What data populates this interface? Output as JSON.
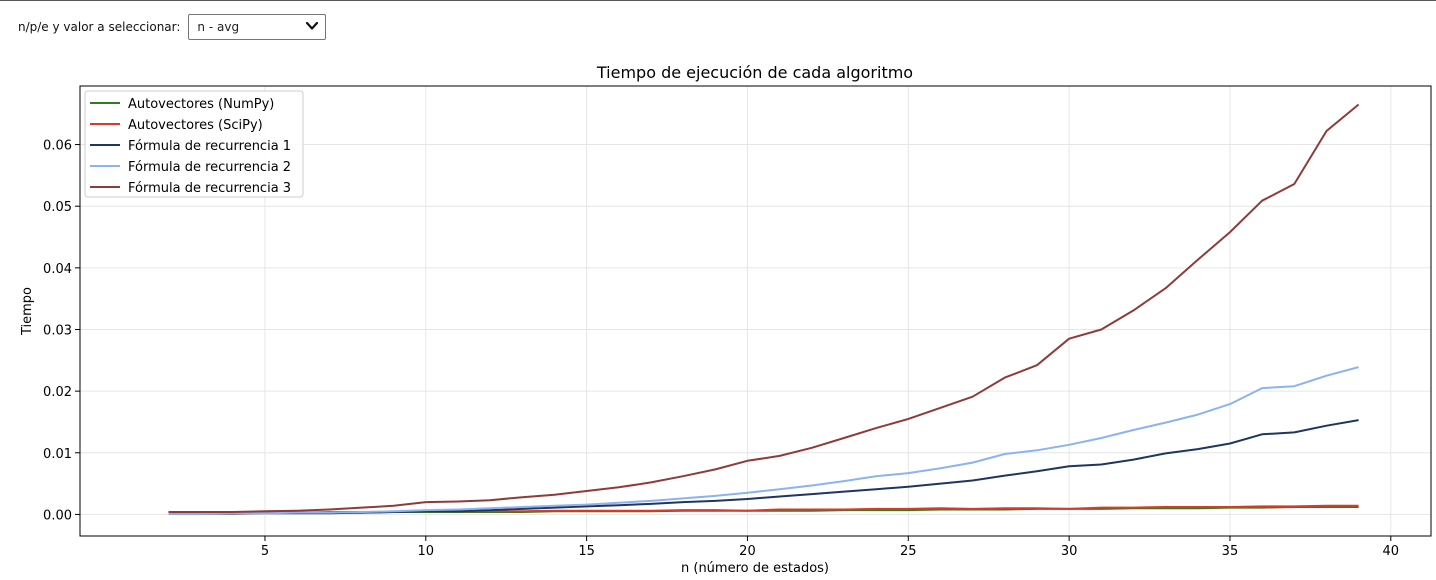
{
  "controls": {
    "label": "n/p/e y valor a seleccionar:",
    "selected": "n - avg"
  },
  "chart_data": {
    "type": "line",
    "title": "Tiempo de ejecución de cada algoritmo",
    "xlabel": "n (número de estados)",
    "ylabel": "Tiempo",
    "xlim": [
      -0.75,
      41.25
    ],
    "ylim": [
      -0.0035,
      0.0695
    ],
    "xticks": [
      5,
      10,
      15,
      20,
      25,
      30,
      35,
      40
    ],
    "yticks": [
      0.0,
      0.01,
      0.02,
      0.03,
      0.04,
      0.05,
      0.06
    ],
    "ytick_labels": [
      "0.00",
      "0.01",
      "0.02",
      "0.03",
      "0.04",
      "0.05",
      "0.06"
    ],
    "grid": true,
    "legend_position": "top-left",
    "x": [
      2,
      3,
      4,
      5,
      6,
      7,
      8,
      9,
      10,
      11,
      12,
      13,
      14,
      15,
      16,
      17,
      18,
      19,
      20,
      21,
      22,
      23,
      24,
      25,
      26,
      27,
      28,
      29,
      30,
      31,
      32,
      33,
      34,
      35,
      36,
      37,
      38,
      39
    ],
    "series": [
      {
        "name": "Autovectores (NumPy)",
        "color": "#2e7d1e",
        "values": [
          0.0002,
          0.0002,
          0.0002,
          0.0003,
          0.0003,
          0.0003,
          0.0003,
          0.0004,
          0.0004,
          0.0004,
          0.0004,
          0.0004,
          0.0005,
          0.0005,
          0.0005,
          0.0005,
          0.0006,
          0.0006,
          0.0006,
          0.0006,
          0.0006,
          0.0007,
          0.0007,
          0.0007,
          0.0008,
          0.0008,
          0.0008,
          0.0009,
          0.0009,
          0.0009,
          0.001,
          0.001,
          0.001,
          0.0011,
          0.0011,
          0.0012,
          0.0012,
          0.0012
        ]
      },
      {
        "name": "Autovectores (SciPy)",
        "color": "#d93a2b",
        "values": [
          0.0002,
          0.0002,
          0.0003,
          0.0003,
          0.0003,
          0.0004,
          0.0004,
          0.0004,
          0.0005,
          0.0005,
          0.0005,
          0.0005,
          0.0006,
          0.0006,
          0.0006,
          0.0006,
          0.0007,
          0.0007,
          0.0006,
          0.0008,
          0.0008,
          0.0008,
          0.0009,
          0.0009,
          0.001,
          0.0009,
          0.001,
          0.001,
          0.0009,
          0.0011,
          0.0011,
          0.0012,
          0.0012,
          0.0012,
          0.0013,
          0.0013,
          0.0014,
          0.0014
        ]
      },
      {
        "name": "Fórmula de recurrencia 1",
        "color": "#1f3562",
        "values": [
          0.0001,
          0.0001,
          0.0001,
          0.0002,
          0.0002,
          0.0002,
          0.0003,
          0.0004,
          0.0005,
          0.0005,
          0.0007,
          0.0009,
          0.0011,
          0.0013,
          0.0015,
          0.0017,
          0.002,
          0.0022,
          0.0025,
          0.0029,
          0.0033,
          0.0037,
          0.0041,
          0.0045,
          0.005,
          0.0055,
          0.0063,
          0.007,
          0.0078,
          0.0081,
          0.0089,
          0.0099,
          0.0106,
          0.0115,
          0.013,
          0.0133,
          0.0144,
          0.0153
        ]
      },
      {
        "name": "Fórmula de recurrencia 2",
        "color": "#8ab4f0",
        "values": [
          0.0001,
          0.0001,
          0.0002,
          0.0002,
          0.0003,
          0.0003,
          0.0004,
          0.0005,
          0.0007,
          0.0008,
          0.001,
          0.0012,
          0.0014,
          0.0016,
          0.0019,
          0.0022,
          0.0026,
          0.003,
          0.0035,
          0.0041,
          0.0047,
          0.0054,
          0.0062,
          0.0067,
          0.0075,
          0.0084,
          0.0098,
          0.0104,
          0.0113,
          0.0124,
          0.0137,
          0.0149,
          0.0162,
          0.0179,
          0.0205,
          0.0208,
          0.0225,
          0.0239
        ]
      },
      {
        "name": "Fórmula de recurrencia 3",
        "color": "#8e3b3a",
        "values": [
          0.0004,
          0.0004,
          0.0004,
          0.0005,
          0.0006,
          0.0008,
          0.0011,
          0.0014,
          0.002,
          0.0021,
          0.0023,
          0.0028,
          0.0032,
          0.0038,
          0.0044,
          0.0052,
          0.0062,
          0.0073,
          0.0087,
          0.0095,
          0.0108,
          0.0124,
          0.014,
          0.0155,
          0.0173,
          0.0191,
          0.0222,
          0.0242,
          0.0285,
          0.03,
          0.0331,
          0.0367,
          0.0413,
          0.0458,
          0.0509,
          0.0536,
          0.0622,
          0.0665
        ]
      }
    ]
  }
}
